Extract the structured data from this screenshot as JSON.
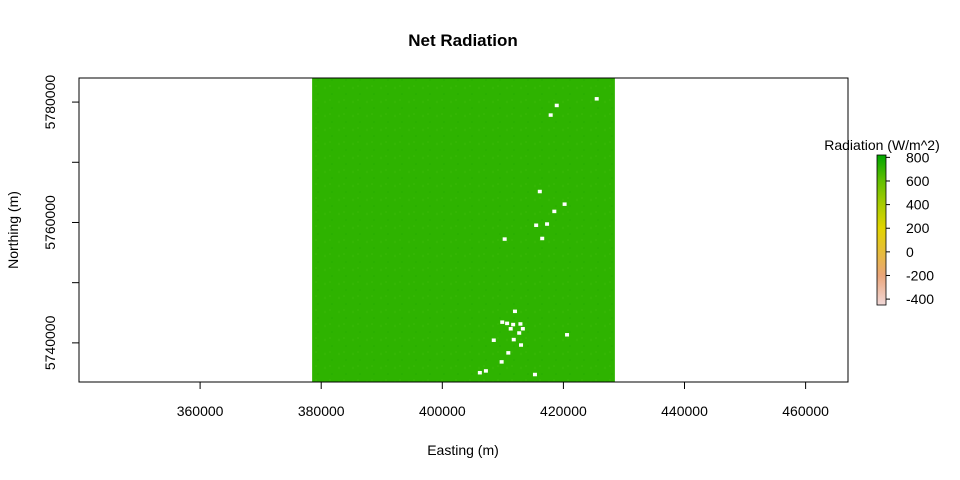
{
  "chart_data": {
    "type": "heatmap",
    "title": "Net Radiation",
    "xlabel": "Easting (m)",
    "ylabel": "Northing (m)",
    "xlim": [
      340000,
      467000
    ],
    "ylim": [
      5733500,
      5784000
    ],
    "x_ticks": [
      360000,
      380000,
      400000,
      420000,
      440000,
      460000
    ],
    "y_ticks": [
      5740000,
      5760000,
      5780000
    ],
    "raster": {
      "x_range": [
        378500,
        428500
      ],
      "y_range": [
        5733500,
        5784000
      ],
      "dominant_value": 780,
      "dominant_color": "#2eb300",
      "nodata_patches": [
        {
          "x": 416100,
          "y": 5765100
        },
        {
          "x": 420200,
          "y": 5763000
        },
        {
          "x": 418500,
          "y": 5761800
        },
        {
          "x": 415500,
          "y": 5759500
        },
        {
          "x": 416500,
          "y": 5757300
        },
        {
          "x": 410300,
          "y": 5757200
        },
        {
          "x": 417300,
          "y": 5759700
        },
        {
          "x": 412000,
          "y": 5745200
        },
        {
          "x": 409900,
          "y": 5743400
        },
        {
          "x": 410700,
          "y": 5743200
        },
        {
          "x": 411700,
          "y": 5743000
        },
        {
          "x": 412900,
          "y": 5743100
        },
        {
          "x": 413300,
          "y": 5742300
        },
        {
          "x": 411300,
          "y": 5742300
        },
        {
          "x": 412700,
          "y": 5741600
        },
        {
          "x": 408500,
          "y": 5740400
        },
        {
          "x": 411800,
          "y": 5740500
        },
        {
          "x": 420600,
          "y": 5741300
        },
        {
          "x": 413000,
          "y": 5739600
        },
        {
          "x": 410900,
          "y": 5738300
        },
        {
          "x": 409800,
          "y": 5736800
        },
        {
          "x": 406200,
          "y": 5735000
        },
        {
          "x": 407200,
          "y": 5735300
        },
        {
          "x": 415300,
          "y": 5734700
        },
        {
          "x": 417900,
          "y": 5777800
        },
        {
          "x": 418900,
          "y": 5779400
        },
        {
          "x": 425500,
          "y": 5780500
        }
      ]
    },
    "legend": {
      "title": "Radiation (W/m^2)",
      "range": [
        -450,
        820
      ],
      "ticks": [
        -400,
        -200,
        0,
        200,
        400,
        600,
        800
      ],
      "colors": [
        {
          "value": -450,
          "color": "#f1d8d8"
        },
        {
          "value": -200,
          "color": "#eaa57a"
        },
        {
          "value": 0,
          "color": "#e6bd3a"
        },
        {
          "value": 200,
          "color": "#e2d400"
        },
        {
          "value": 400,
          "color": "#a9cc00"
        },
        {
          "value": 600,
          "color": "#63bf00"
        },
        {
          "value": 820,
          "color": "#00a600"
        }
      ],
      "placement": "right"
    },
    "grid": false
  }
}
